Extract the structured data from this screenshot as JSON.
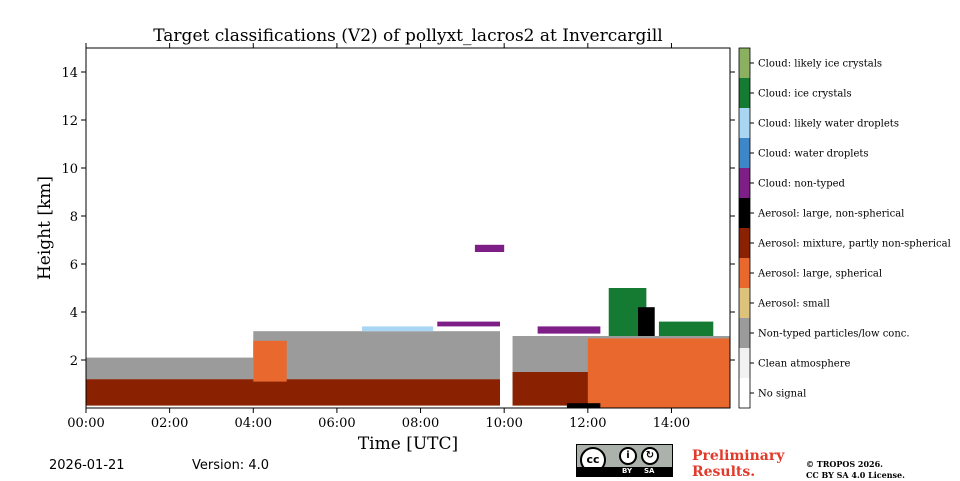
{
  "chart_data": {
    "type": "heatmap",
    "title": "Target classifications (V2) of pollyxt_lacros2 at Invercargill",
    "xlabel": "Time [UTC]",
    "ylabel": "Height [km]",
    "xlim": [
      0,
      15.4
    ],
    "ylim": [
      0,
      15
    ],
    "x_ticks": [
      {
        "value": 0,
        "label": "00:00"
      },
      {
        "value": 2,
        "label": "02:00"
      },
      {
        "value": 4,
        "label": "04:00"
      },
      {
        "value": 6,
        "label": "06:00"
      },
      {
        "value": 8,
        "label": "08:00"
      },
      {
        "value": 10,
        "label": "10:00"
      },
      {
        "value": 12,
        "label": "12:00"
      },
      {
        "value": 14,
        "label": "14:00"
      }
    ],
    "y_ticks": [
      {
        "value": 2,
        "label": "2"
      },
      {
        "value": 4,
        "label": "4"
      },
      {
        "value": 6,
        "label": "6"
      },
      {
        "value": 8,
        "label": "8"
      },
      {
        "value": 10,
        "label": "10"
      },
      {
        "value": 12,
        "label": "12"
      },
      {
        "value": 14,
        "label": "14"
      }
    ],
    "classes": [
      {
        "name": "Cloud: likely ice crystals",
        "color": "#8ab060"
      },
      {
        "name": "Cloud: ice crystals",
        "color": "#157a32"
      },
      {
        "name": "Cloud: likely water droplets",
        "color": "#a9d6f3"
      },
      {
        "name": "Cloud: water droplets",
        "color": "#3d87c8"
      },
      {
        "name": "Cloud: non-typed",
        "color": "#7e1f88"
      },
      {
        "name": "Aerosol: large, non-spherical",
        "color": "#000000"
      },
      {
        "name": "Aerosol: mixture, partly non-spherical",
        "color": "#8a2100"
      },
      {
        "name": "Aerosol: large, spherical",
        "color": "#e8682e"
      },
      {
        "name": "Aerosol: small",
        "color": "#dcc27a"
      },
      {
        "name": "Non-typed particles/low conc.",
        "color": "#9b9b9b"
      },
      {
        "name": "Clean atmosphere",
        "color": "#f2f2f2"
      },
      {
        "name": "No signal",
        "color": "#ffffff"
      }
    ],
    "regions": [
      {
        "class": "Non-typed particles/low conc.",
        "t0": 0.0,
        "t1": 4.0,
        "h0": 1.2,
        "h1": 2.1
      },
      {
        "class": "Non-typed particles/low conc.",
        "t0": 4.0,
        "t1": 9.9,
        "h0": 1.2,
        "h1": 3.2
      },
      {
        "class": "Non-typed particles/low conc.",
        "t0": 10.2,
        "t1": 15.4,
        "h0": 1.1,
        "h1": 3.0
      },
      {
        "class": "Aerosol: mixture, partly non-spherical",
        "t0": 0.0,
        "t1": 9.9,
        "h0": 0.1,
        "h1": 1.2
      },
      {
        "class": "Aerosol: mixture, partly non-spherical",
        "t0": 10.2,
        "t1": 12.5,
        "h0": 0.1,
        "h1": 1.5
      },
      {
        "class": "Aerosol: large, spherical",
        "t0": 12.0,
        "t1": 15.4,
        "h0": 0.0,
        "h1": 2.9
      },
      {
        "class": "Aerosol: large, spherical",
        "t0": 4.0,
        "t1": 4.8,
        "h0": 1.1,
        "h1": 2.8
      },
      {
        "class": "Cloud: non-typed",
        "t0": 8.4,
        "t1": 9.9,
        "h0": 3.4,
        "h1": 3.6
      },
      {
        "class": "Cloud: non-typed",
        "t0": 10.8,
        "t1": 12.3,
        "h0": 3.1,
        "h1": 3.4
      },
      {
        "class": "Cloud: non-typed",
        "t0": 9.3,
        "t1": 10.0,
        "h0": 6.5,
        "h1": 6.8
      },
      {
        "class": "Cloud: ice crystals",
        "t0": 12.5,
        "t1": 13.4,
        "h0": 3.0,
        "h1": 5.0
      },
      {
        "class": "Cloud: ice crystals",
        "t0": 13.7,
        "t1": 15.0,
        "h0": 3.0,
        "h1": 3.6
      },
      {
        "class": "Cloud: likely water droplets",
        "t0": 6.6,
        "t1": 8.3,
        "h0": 3.2,
        "h1": 3.4
      },
      {
        "class": "Aerosol: large, non-spherical",
        "t0": 13.2,
        "t1": 13.6,
        "h0": 3.0,
        "h1": 4.2
      },
      {
        "class": "Aerosol: large, non-spherical",
        "t0": 11.5,
        "t1": 12.3,
        "h0": 0.0,
        "h1": 0.2
      }
    ]
  },
  "footer": {
    "date": "2026-01-21",
    "version": "Version: 4.0",
    "cc_letters": "cc",
    "cc_by": "BY",
    "cc_sa": "SA",
    "preliminary_line1": "Preliminary",
    "preliminary_line2": "Results.",
    "copyright_line1": "© TROPOS 2026.",
    "copyright_line2": "CC BY SA 4.0 License."
  }
}
